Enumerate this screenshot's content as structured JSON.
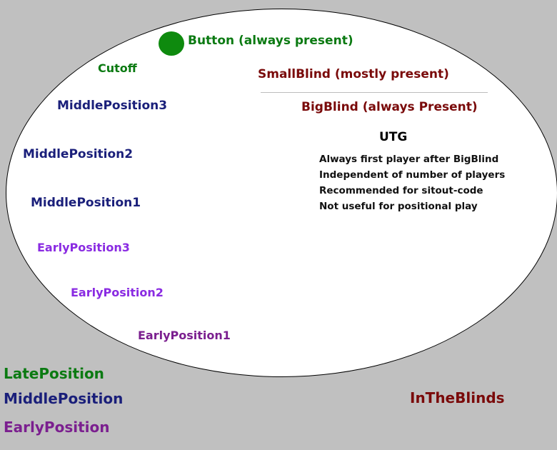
{
  "colors": {
    "background": "#c0c0c0",
    "table": "#ffffff",
    "late_position": "#0b7a12",
    "middle_position": "#1a1f7a",
    "early_position": "#8a2be2",
    "blinds": "#7a0a0a"
  },
  "seats": {
    "button": "Button (always present)",
    "cutoff": "Cutoff",
    "small_blind": "SmallBlind (mostly present)",
    "big_blind": "BigBlind (always Present)",
    "middle_position_3": "MiddlePosition3",
    "middle_position_2": "MiddlePosition2",
    "middle_position_1": "MiddlePosition1",
    "early_position_3": "EarlyPosition3",
    "early_position_2": "EarlyPosition2",
    "early_position_1": "EarlyPosition1"
  },
  "utg": {
    "title": "UTG",
    "notes": [
      "Always first player after BigBlind",
      "Independent of number of players",
      "Recommended for sitout-code",
      "Not useful for positional play"
    ]
  },
  "legend": {
    "late": "LatePosition",
    "middle": "MiddlePosition",
    "early": "EarlyPosition",
    "blinds": "InTheBlinds"
  }
}
